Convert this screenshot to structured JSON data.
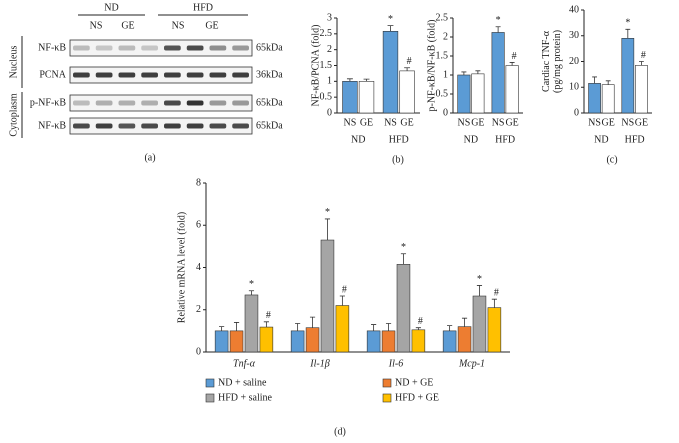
{
  "blot": {
    "group_labels": [
      "ND",
      "HFD"
    ],
    "lane_labels": [
      "NS",
      "GE",
      "NS",
      "GE"
    ],
    "compartments": [
      "Nucleus",
      "Cytoplasm"
    ],
    "rows": [
      {
        "protein": "NF-κB",
        "size": "65kDa"
      },
      {
        "protein": "PCNA",
        "size": "36kDa"
      },
      {
        "protein": "p-NF-κB",
        "size": "65kDa"
      },
      {
        "protein": "NF-κB",
        "size": "65kDa"
      }
    ],
    "panel": "(a)"
  },
  "chart_data": [
    {
      "type": "bar",
      "ylabel": [
        "NF-κB/PCNA (fold)"
      ],
      "panel": "(b)",
      "categories": [
        "NS",
        "GE",
        "NS",
        "GE"
      ],
      "groups": [
        "ND",
        "HFD"
      ],
      "values": [
        1.0,
        1.0,
        2.58,
        1.33
      ],
      "errors": [
        0.08,
        0.07,
        0.18,
        0.1
      ],
      "colors": [
        "#5b9bd5",
        "#ffffff",
        "#5b9bd5",
        "#ffffff"
      ],
      "significance": [
        null,
        null,
        "*",
        "#"
      ],
      "ylim": [
        0,
        3
      ],
      "yticks": [
        0,
        0.5,
        1,
        1.5,
        2,
        2.5,
        3
      ]
    },
    {
      "type": "bar",
      "ylabel": [
        "p-NF-κB/NF-κB (fold)"
      ],
      "categories": [
        "NS",
        "GE",
        "NS",
        "GE"
      ],
      "groups": [
        "ND",
        "HFD"
      ],
      "values": [
        1.0,
        1.03,
        2.12,
        1.25
      ],
      "errors": [
        0.08,
        0.08,
        0.15,
        0.08
      ],
      "colors": [
        "#5b9bd5",
        "#ffffff",
        "#5b9bd5",
        "#ffffff"
      ],
      "significance": [
        null,
        null,
        "*",
        "#"
      ],
      "ylim": [
        0,
        2.5
      ],
      "yticks": [
        0,
        0.5,
        1,
        1.5,
        2,
        2.5
      ]
    },
    {
      "type": "bar",
      "ylabel": [
        "Cardiac TNF-α",
        "(pg/mg protein)"
      ],
      "panel": "(c)",
      "categories": [
        "NS",
        "GE",
        "NS",
        "GE"
      ],
      "groups": [
        "ND",
        "HFD"
      ],
      "values": [
        11.5,
        11,
        29,
        18.5
      ],
      "errors": [
        2.5,
        1.5,
        3.5,
        1.5
      ],
      "colors": [
        "#5b9bd5",
        "#ffffff",
        "#5b9bd5",
        "#ffffff"
      ],
      "significance": [
        null,
        null,
        "*",
        "#"
      ],
      "ylim": [
        0,
        40
      ],
      "yticks": [
        0,
        10,
        20,
        30,
        40
      ]
    },
    {
      "type": "bar",
      "ylabel": [
        "Relative mRNA level (fold)"
      ],
      "panel": "(d)",
      "categories": [
        "Tnf-α",
        "Il-1β",
        "Il-6",
        "Mcp-1"
      ],
      "series": [
        {
          "name": "ND + saline",
          "color": "#5b9bd5",
          "values": [
            1.0,
            1.0,
            1.0,
            1.0
          ],
          "errors": [
            0.2,
            0.35,
            0.3,
            0.25
          ],
          "significance": [
            null,
            null,
            null,
            null
          ]
        },
        {
          "name": "ND + GE",
          "color": "#ed7d31",
          "values": [
            1.0,
            1.15,
            1.0,
            1.2
          ],
          "errors": [
            0.4,
            0.5,
            0.35,
            0.4
          ],
          "significance": [
            null,
            null,
            null,
            null
          ]
        },
        {
          "name": "HFD + saline",
          "color": "#a5a5a5",
          "values": [
            2.7,
            5.3,
            4.15,
            2.65
          ],
          "errors": [
            0.2,
            1.0,
            0.5,
            0.5
          ],
          "significance": [
            "*",
            "*",
            "*",
            "*"
          ]
        },
        {
          "name": "HFD + GE",
          "color": "#ffc000",
          "values": [
            1.18,
            2.2,
            1.05,
            2.1
          ],
          "errors": [
            0.25,
            0.45,
            0.1,
            0.4
          ],
          "significance": [
            "#",
            "#",
            "#",
            "#"
          ]
        }
      ],
      "ylim": [
        0,
        8
      ],
      "yticks": [
        0,
        2,
        4,
        6,
        8
      ]
    }
  ]
}
